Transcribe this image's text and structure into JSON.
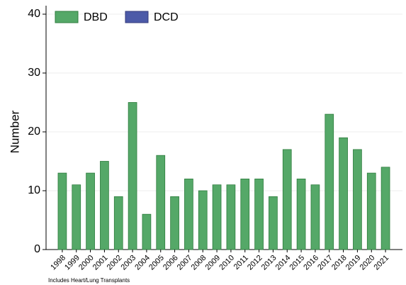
{
  "chart_data": {
    "type": "stacked_bar",
    "y_label": "Number",
    "footnote": "Includes Heart/Lung Transplants",
    "categories": [
      "1998",
      "1999",
      "2000",
      "2001",
      "2002",
      "2003",
      "2004",
      "2005",
      "2006",
      "2007",
      "2008",
      "2009",
      "2010",
      "2011",
      "2012",
      "2013",
      "2014",
      "2015",
      "2016",
      "2017",
      "2018",
      "2019",
      "2020",
      "2021"
    ],
    "series": [
      {
        "name": "DBD",
        "color": "#55a868",
        "values": [
          13,
          11,
          13,
          15,
          9,
          25,
          6,
          16,
          9,
          12,
          10,
          11,
          11,
          12,
          12,
          9,
          17,
          12,
          11,
          23,
          19,
          17,
          13,
          14
        ]
      },
      {
        "name": "DCD",
        "color": "#4c5aa8",
        "values": [
          0,
          0,
          0,
          0,
          0,
          0,
          0,
          0,
          0,
          0,
          0,
          0,
          0,
          0,
          0,
          0,
          0,
          0,
          0,
          0,
          0,
          0,
          0,
          0
        ]
      }
    ],
    "ylim": [
      0,
      40
    ],
    "yticks": [
      0,
      10,
      20,
      30,
      40
    ],
    "grid": true,
    "legend": "top-left"
  }
}
